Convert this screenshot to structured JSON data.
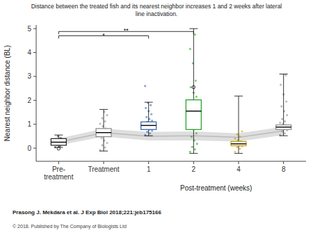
{
  "chart_data": {
    "type": "box",
    "title": "Distance between the treated fish and its nearest neighbor increases 1 and 2 weeks after lateral\nline inactivation.",
    "ylabel": "Nearest neighbor distance (BL)",
    "xlabel": "Post-treatment (weeks)",
    "categories": [
      "Pre-\ntreatment",
      "Treatment",
      "1",
      "2",
      "4",
      "8"
    ],
    "ylim": [
      -0.55,
      5.15
    ],
    "yticks": [
      0,
      1,
      2,
      3,
      4,
      5
    ],
    "grid": false,
    "footnote": "Prasong J. Mekdara et al. J Exp Biol 2018;221:jeb175166",
    "copyright": "© 2018. Published by The Company of Biologists Ltd",
    "boxes": [
      {
        "median": 0.25,
        "q1": 0.12,
        "q3": 0.4,
        "whisker_low": 0.03,
        "whisker_high": 0.55,
        "outliers": [
          -0.02
        ],
        "color": "#222222",
        "points": [
          0.04,
          0.08,
          0.13,
          0.18,
          0.22,
          0.27,
          0.3,
          0.34,
          0.38,
          0.43,
          0.5
        ]
      },
      {
        "median": 0.65,
        "q1": 0.48,
        "q3": 0.82,
        "whisker_low": -0.12,
        "whisker_high": 1.62,
        "outliers": [],
        "color": "#888888",
        "points": [
          -0.08,
          0.03,
          0.12,
          0.22,
          0.32,
          0.42,
          0.52,
          0.62,
          0.72,
          0.82,
          0.92,
          1.02,
          1.12,
          1.25,
          1.38,
          1.52
        ]
      },
      {
        "median": 0.95,
        "q1": 0.78,
        "q3": 1.1,
        "whisker_low": 0.52,
        "whisker_high": 1.92,
        "outliers": [],
        "color": "#3060b0",
        "points": [
          0.55,
          0.62,
          0.68,
          0.73,
          0.78,
          0.82,
          0.86,
          0.89,
          0.92,
          0.95,
          0.98,
          1.01,
          1.05,
          1.1,
          1.15,
          1.22,
          1.3,
          1.42,
          1.55,
          1.68,
          1.8,
          1.9,
          2.6
        ]
      },
      {
        "median": 1.55,
        "q1": 0.78,
        "q3": 2.02,
        "whisker_low": -0.22,
        "whisker_high": 5.0,
        "outliers": [
          2.55
        ],
        "color": "#1a9e1a",
        "points": [
          -0.15,
          -0.05,
          0.05,
          0.18,
          0.32,
          0.48,
          0.62,
          0.78,
          0.9,
          1.02,
          1.15,
          1.28,
          1.42,
          1.55,
          1.68,
          1.82,
          1.98,
          2.15,
          2.32,
          2.55,
          2.82,
          3.55,
          4.15,
          4.75
        ]
      },
      {
        "median": 0.18,
        "q1": 0.1,
        "q3": 0.28,
        "whisker_low": -0.22,
        "whisker_high": 2.18,
        "outliers": [],
        "color": "#c8a000",
        "points": [
          -0.15,
          -0.02,
          0.04,
          0.08,
          0.11,
          0.14,
          0.18,
          0.21,
          0.24,
          0.28,
          0.33,
          0.4,
          0.48,
          0.58,
          0.7
        ]
      },
      {
        "median": 0.88,
        "q1": 0.78,
        "q3": 0.97,
        "whisker_low": 0.52,
        "whisker_high": 3.1,
        "outliers": [],
        "color": "#888888",
        "points": [
          0.55,
          0.62,
          0.7,
          0.75,
          0.8,
          0.84,
          0.88,
          0.91,
          0.94,
          0.97,
          1.01,
          1.06,
          1.12,
          1.22,
          1.38,
          1.55,
          1.75,
          1.95,
          2.25,
          2.65,
          3.05
        ]
      }
    ],
    "control_ribbon": {
      "median": [
        0.25,
        0.65,
        0.5,
        0.52,
        0.45,
        0.72
      ],
      "upper": [
        0.4,
        0.82,
        0.68,
        0.7,
        0.62,
        0.9
      ],
      "lower": [
        0.12,
        0.48,
        0.32,
        0.32,
        0.28,
        0.55
      ]
    },
    "annotations": [
      {
        "text": "*",
        "y": 4.7,
        "from": 0,
        "to": 2
      },
      {
        "text": "**",
        "y": 4.88,
        "from": 0,
        "to": 3
      }
    ]
  }
}
